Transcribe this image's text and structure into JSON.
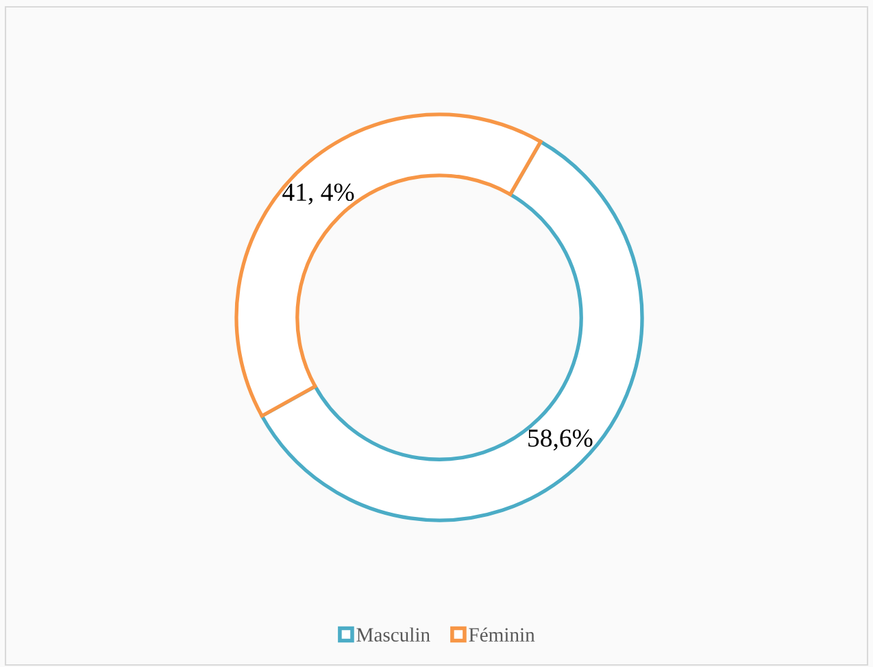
{
  "chart_data": {
    "type": "donut",
    "categories": [
      "Masculin",
      "Féminin"
    ],
    "values": [
      58.6,
      41.4
    ],
    "colors": [
      "#4bacc6",
      "#f79646"
    ],
    "value_labels": [
      "58,6%",
      "41, 4%"
    ],
    "legend": "bottom"
  }
}
